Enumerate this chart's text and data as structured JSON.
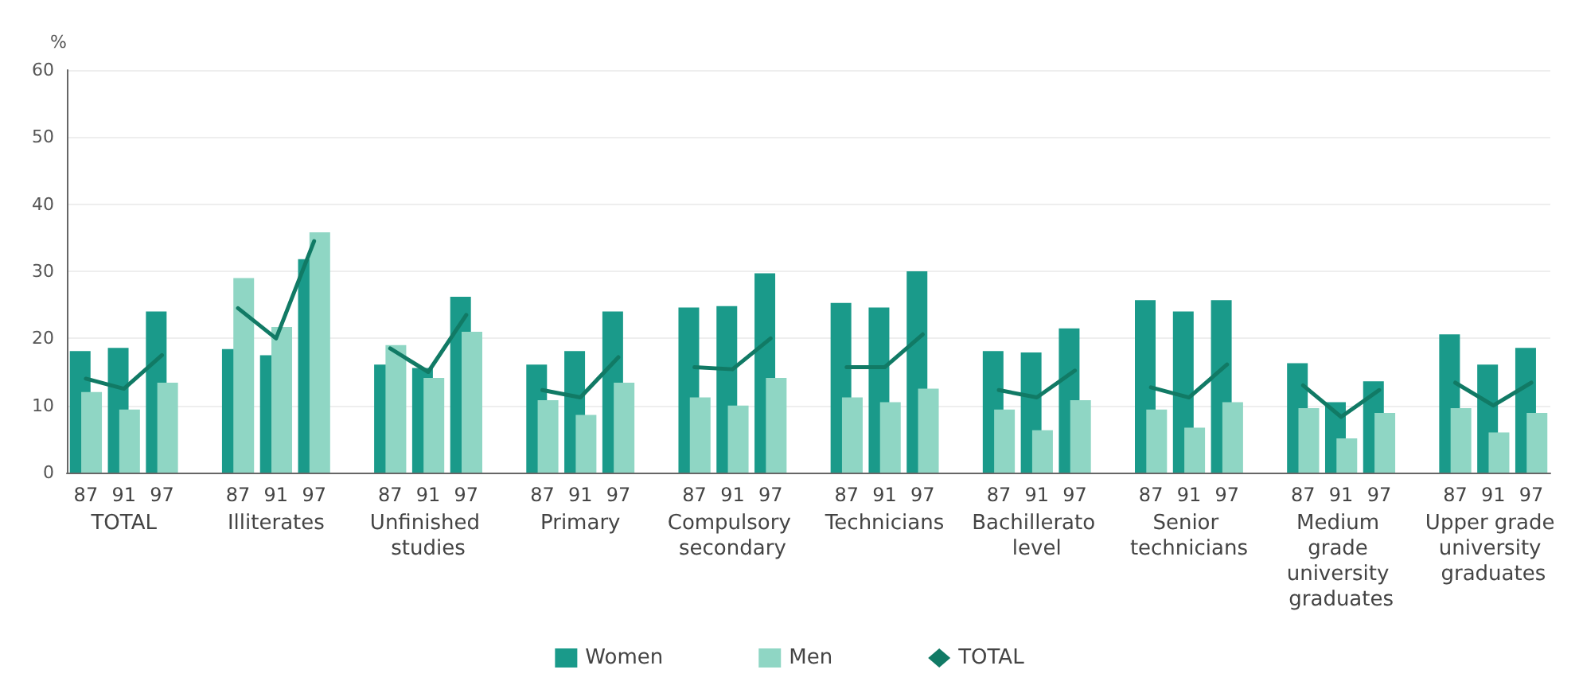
{
  "chart_data": {
    "type": "bar",
    "ylabel": "%",
    "categories": [
      "87",
      "91",
      "97",
      null,
      "87",
      "91",
      "97",
      null,
      "87",
      "91",
      "97",
      null,
      "87",
      "91",
      "97",
      null,
      "87",
      "91",
      "97",
      null,
      "87",
      "91",
      "97",
      null,
      "87",
      "91",
      "97",
      null,
      "87",
      "91",
      "97",
      null,
      "87",
      "91",
      "97",
      null,
      "87",
      "91",
      "97"
    ],
    "series": [
      {
        "name": "Women",
        "color": "#1a9a8a",
        "values": [
          18.1,
          18.6,
          24,
          null,
          18.4,
          17.5,
          31.8,
          null,
          16.1,
          15.6,
          26.2,
          null,
          16.1,
          18.1,
          24,
          null,
          24.6,
          24.8,
          29.7,
          null,
          25.3,
          24.6,
          30,
          null,
          18.1,
          17.9,
          21.5,
          null,
          25.7,
          24,
          25.7,
          null,
          16.3,
          10.5,
          13.6,
          null,
          20.6,
          16.1,
          18.6
        ]
      },
      {
        "name": "Men",
        "color": "#8fd6c4",
        "values": [
          12,
          9.4,
          13.4,
          null,
          29,
          21.7,
          35.8,
          null,
          19,
          14.1,
          21,
          null,
          10.8,
          8.6,
          13.4,
          null,
          11.2,
          10,
          14.1,
          null,
          11.2,
          10.5,
          12.5,
          null,
          9.4,
          6.3,
          10.8,
          null,
          9.4,
          6.7,
          10.5,
          null,
          9.6,
          5.1,
          8.9,
          null,
          9.6,
          6,
          8.9
        ]
      },
      {
        "name": "TOTAL",
        "type": "line",
        "color": "#117a65",
        "values": [
          14,
          12.5,
          17.5,
          null,
          24.5,
          20,
          34.5,
          null,
          18.5,
          15,
          23.5,
          null,
          12.3,
          11.2,
          17.2,
          null,
          15.7,
          15.4,
          20,
          null,
          15.7,
          15.7,
          20.6,
          null,
          12.3,
          11.2,
          15.2,
          null,
          12.7,
          11.2,
          16.1,
          null,
          13,
          8.3,
          12.3,
          null,
          13.4,
          10,
          13.4
        ]
      }
    ],
    "annotations": [
      "TOTAL",
      "Illiterates",
      "Unfinished studies",
      "Primary",
      "Compulsory secondary",
      "Technicians",
      "Bachillerato level",
      "Senior technicians",
      "Medium grade university graduates",
      "Upper grade university graduates"
    ],
    "ylim": [
      0,
      60
    ],
    "yticks": [
      0,
      10,
      20,
      30,
      40,
      50,
      60
    ],
    "grid": "y",
    "legend": "bottom",
    "marker": "none",
    "line_style": "solid"
  }
}
